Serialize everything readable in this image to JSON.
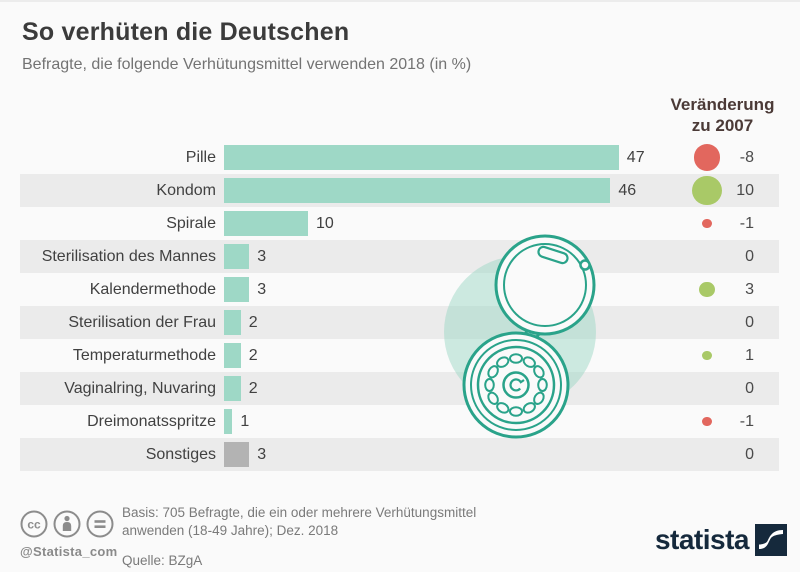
{
  "title": "So verhüten die Deutschen",
  "subtitle": "Befragte, die folgende Verhütungsmittel verwenden 2018 (in %)",
  "change_header": {
    "line1": "Veränderung",
    "line2": "zu 2007"
  },
  "chart_data": {
    "type": "bar",
    "orientation": "horizontal",
    "title": "So verhüten die Deutschen",
    "subtitle": "Befragte, die folgende Verhütungsmittel verwenden 2018 (in %)",
    "unit": "%",
    "categories": [
      "Pille",
      "Kondom",
      "Spirale",
      "Sterilisation des Mannes",
      "Kalendermethode",
      "Sterilisation der Frau",
      "Temperaturmethode",
      "Vaginalring, Nuvaring",
      "Dreimonatsspritze",
      "Sonstiges"
    ],
    "series": [
      {
        "name": "Verwendung 2018 (in %)",
        "values": [
          47,
          46,
          10,
          3,
          3,
          2,
          2,
          2,
          1,
          3
        ]
      },
      {
        "name": "Veränderung zu 2007",
        "values": [
          -8,
          10,
          -1,
          0,
          3,
          0,
          1,
          0,
          -1,
          0
        ]
      }
    ],
    "xlim": [
      0,
      50
    ],
    "grid": false,
    "gray_bars": [
      "Sonstiges"
    ],
    "value_labels_shown": true,
    "change_dot_rule": "area-proportional, red=negative, green=positive, none=0"
  },
  "footer": {
    "basis_line1": "Basis: 705 Befragte, die ein oder mehrere Verhütungsmittel",
    "basis_line2": "anwenden (18-49 Jahre); Dez. 2018",
    "source": "Quelle: BZgA",
    "handle": "@Statista_com",
    "brand": "statista"
  },
  "colors": {
    "bar": "#9ed8c6",
    "bar_gray": "#b3b3b3",
    "positive": "#a9c967",
    "negative": "#e2675e",
    "row_alt": "#ebebeb",
    "illustration_stroke": "#2aa38a",
    "illustration_fill": "#9ed8c6",
    "brand_navy": "#15293c",
    "change_header_text": "#4b3a37"
  }
}
